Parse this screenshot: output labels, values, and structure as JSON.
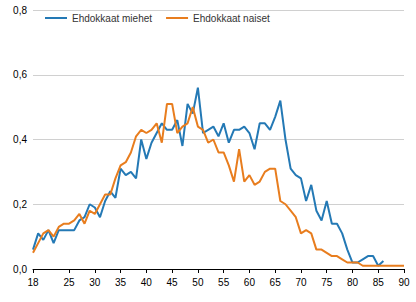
{
  "chart_data": {
    "type": "line",
    "series": [
      {
        "name": "Ehdokkaat miehet",
        "color": "#2479b5",
        "x": [
          18,
          19,
          20,
          21,
          22,
          23,
          24,
          25,
          26,
          27,
          28,
          29,
          30,
          31,
          32,
          33,
          34,
          35,
          36,
          37,
          38,
          39,
          40,
          41,
          42,
          43,
          44,
          45,
          46,
          47,
          48,
          49,
          50,
          51,
          52,
          53,
          54,
          55,
          56,
          57,
          58,
          59,
          60,
          61,
          62,
          63,
          64,
          65,
          66,
          67,
          68,
          69,
          70,
          71,
          72,
          73,
          74,
          75,
          76,
          77,
          78,
          79,
          80,
          81,
          82,
          83,
          84,
          85,
          86
        ],
        "values": [
          0.06,
          0.11,
          0.09,
          0.12,
          0.08,
          0.12,
          0.12,
          0.12,
          0.12,
          0.15,
          0.16,
          0.2,
          0.19,
          0.16,
          0.21,
          0.24,
          0.22,
          0.31,
          0.29,
          0.3,
          0.28,
          0.4,
          0.34,
          0.39,
          0.42,
          0.45,
          0.43,
          0.43,
          0.46,
          0.38,
          0.51,
          0.48,
          0.56,
          0.42,
          0.43,
          0.44,
          0.41,
          0.45,
          0.39,
          0.43,
          0.43,
          0.44,
          0.42,
          0.37,
          0.45,
          0.45,
          0.43,
          0.47,
          0.52,
          0.4,
          0.31,
          0.29,
          0.28,
          0.21,
          0.26,
          0.18,
          0.15,
          0.21,
          0.14,
          0.14,
          0.11,
          0.06,
          0.02,
          0.02,
          0.03,
          0.04,
          0.04,
          0.01,
          0.025
        ]
      },
      {
        "name": "Ehdokkaat naiset",
        "color": "#e87d1e",
        "x": [
          18,
          19,
          20,
          21,
          22,
          23,
          24,
          25,
          26,
          27,
          28,
          29,
          30,
          31,
          32,
          33,
          34,
          35,
          36,
          37,
          38,
          39,
          40,
          41,
          42,
          43,
          44,
          45,
          46,
          47,
          48,
          49,
          50,
          51,
          52,
          53,
          54,
          55,
          56,
          57,
          58,
          59,
          60,
          61,
          62,
          63,
          64,
          65,
          66,
          67,
          68,
          69,
          70,
          71,
          72,
          73,
          74,
          75,
          76,
          77,
          78,
          79,
          80,
          81,
          82,
          83,
          84,
          85,
          86,
          87,
          88,
          89,
          90
        ],
        "values": [
          0.05,
          0.08,
          0.11,
          0.12,
          0.1,
          0.13,
          0.14,
          0.14,
          0.15,
          0.17,
          0.14,
          0.18,
          0.17,
          0.2,
          0.23,
          0.23,
          0.28,
          0.32,
          0.33,
          0.36,
          0.41,
          0.43,
          0.42,
          0.43,
          0.45,
          0.39,
          0.51,
          0.51,
          0.42,
          0.44,
          0.45,
          0.5,
          0.44,
          0.43,
          0.39,
          0.4,
          0.36,
          0.36,
          0.32,
          0.27,
          0.37,
          0.27,
          0.29,
          0.26,
          0.27,
          0.3,
          0.31,
          0.31,
          0.21,
          0.2,
          0.18,
          0.16,
          0.11,
          0.12,
          0.11,
          0.06,
          0.06,
          0.05,
          0.04,
          0.04,
          0.03,
          0.02,
          0.02,
          0.02,
          0.01,
          0.01,
          0.01,
          0.01,
          0.01,
          0.01,
          0.01,
          0.01,
          0.01
        ]
      }
    ],
    "xlim": [
      18,
      90
    ],
    "xticks": [
      18,
      25,
      30,
      35,
      40,
      45,
      50,
      55,
      60,
      65,
      70,
      75,
      80,
      85,
      90
    ],
    "ylim": [
      0,
      0.8
    ],
    "yticks": [
      {
        "value": 0,
        "label": "0,0"
      },
      {
        "value": 0.2,
        "label": "0,2"
      },
      {
        "value": 0.4,
        "label": "0,4"
      },
      {
        "value": 0.6,
        "label": "0,6"
      },
      {
        "value": 0.8,
        "label": "0,8"
      }
    ],
    "grid": true,
    "legend": "top-left"
  }
}
